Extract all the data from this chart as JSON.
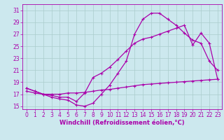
{
  "xlabel": "Windchill (Refroidissement éolien,°C)",
  "bg_color": "#cce8ee",
  "grid_color": "#aacccc",
  "line_color": "#aa00aa",
  "xlim": [
    -0.5,
    23.5
  ],
  "ylim": [
    14.5,
    32
  ],
  "xticks": [
    0,
    1,
    2,
    3,
    4,
    5,
    6,
    7,
    8,
    9,
    10,
    11,
    12,
    13,
    14,
    15,
    16,
    17,
    18,
    19,
    20,
    21,
    22,
    23
  ],
  "yticks": [
    15,
    17,
    19,
    21,
    23,
    25,
    27,
    29,
    31
  ],
  "curve1_x": [
    0,
    1,
    2,
    3,
    4,
    5,
    6,
    7,
    8,
    9,
    10,
    11,
    12,
    13,
    14,
    15,
    16,
    17,
    18,
    19,
    20,
    21,
    22,
    23
  ],
  "curve1_y": [
    18.0,
    17.5,
    17.0,
    16.5,
    16.2,
    16.0,
    15.2,
    15.0,
    15.5,
    17.0,
    18.5,
    20.5,
    22.5,
    27.0,
    29.5,
    30.5,
    30.5,
    29.5,
    28.5,
    27.2,
    26.0,
    25.5,
    22.5,
    21.0
  ],
  "curve2_x": [
    0,
    1,
    2,
    3,
    4,
    5,
    6,
    7,
    8,
    9,
    10,
    11,
    12,
    13,
    14,
    15,
    16,
    17,
    18,
    19,
    20,
    21,
    22,
    23
  ],
  "curve2_y": [
    18.0,
    17.5,
    17.0,
    16.8,
    16.5,
    16.5,
    15.8,
    17.2,
    19.8,
    20.5,
    21.5,
    22.8,
    24.2,
    25.5,
    26.2,
    26.5,
    27.0,
    27.5,
    28.0,
    28.5,
    25.2,
    27.2,
    25.5,
    19.5
  ],
  "curve3_x": [
    0,
    1,
    2,
    3,
    4,
    5,
    6,
    7,
    8,
    9,
    10,
    11,
    12,
    13,
    14,
    15,
    16,
    17,
    18,
    19,
    20,
    21,
    22,
    23
  ],
  "curve3_y": [
    17.5,
    17.2,
    17.0,
    17.0,
    17.0,
    17.2,
    17.2,
    17.3,
    17.5,
    17.7,
    17.8,
    18.0,
    18.2,
    18.4,
    18.6,
    18.7,
    18.8,
    18.9,
    19.0,
    19.1,
    19.2,
    19.3,
    19.4,
    19.5
  ],
  "markersize": 3,
  "linewidth": 0.9,
  "fontsize_xlabel": 6,
  "fontsize_tick": 5.5
}
